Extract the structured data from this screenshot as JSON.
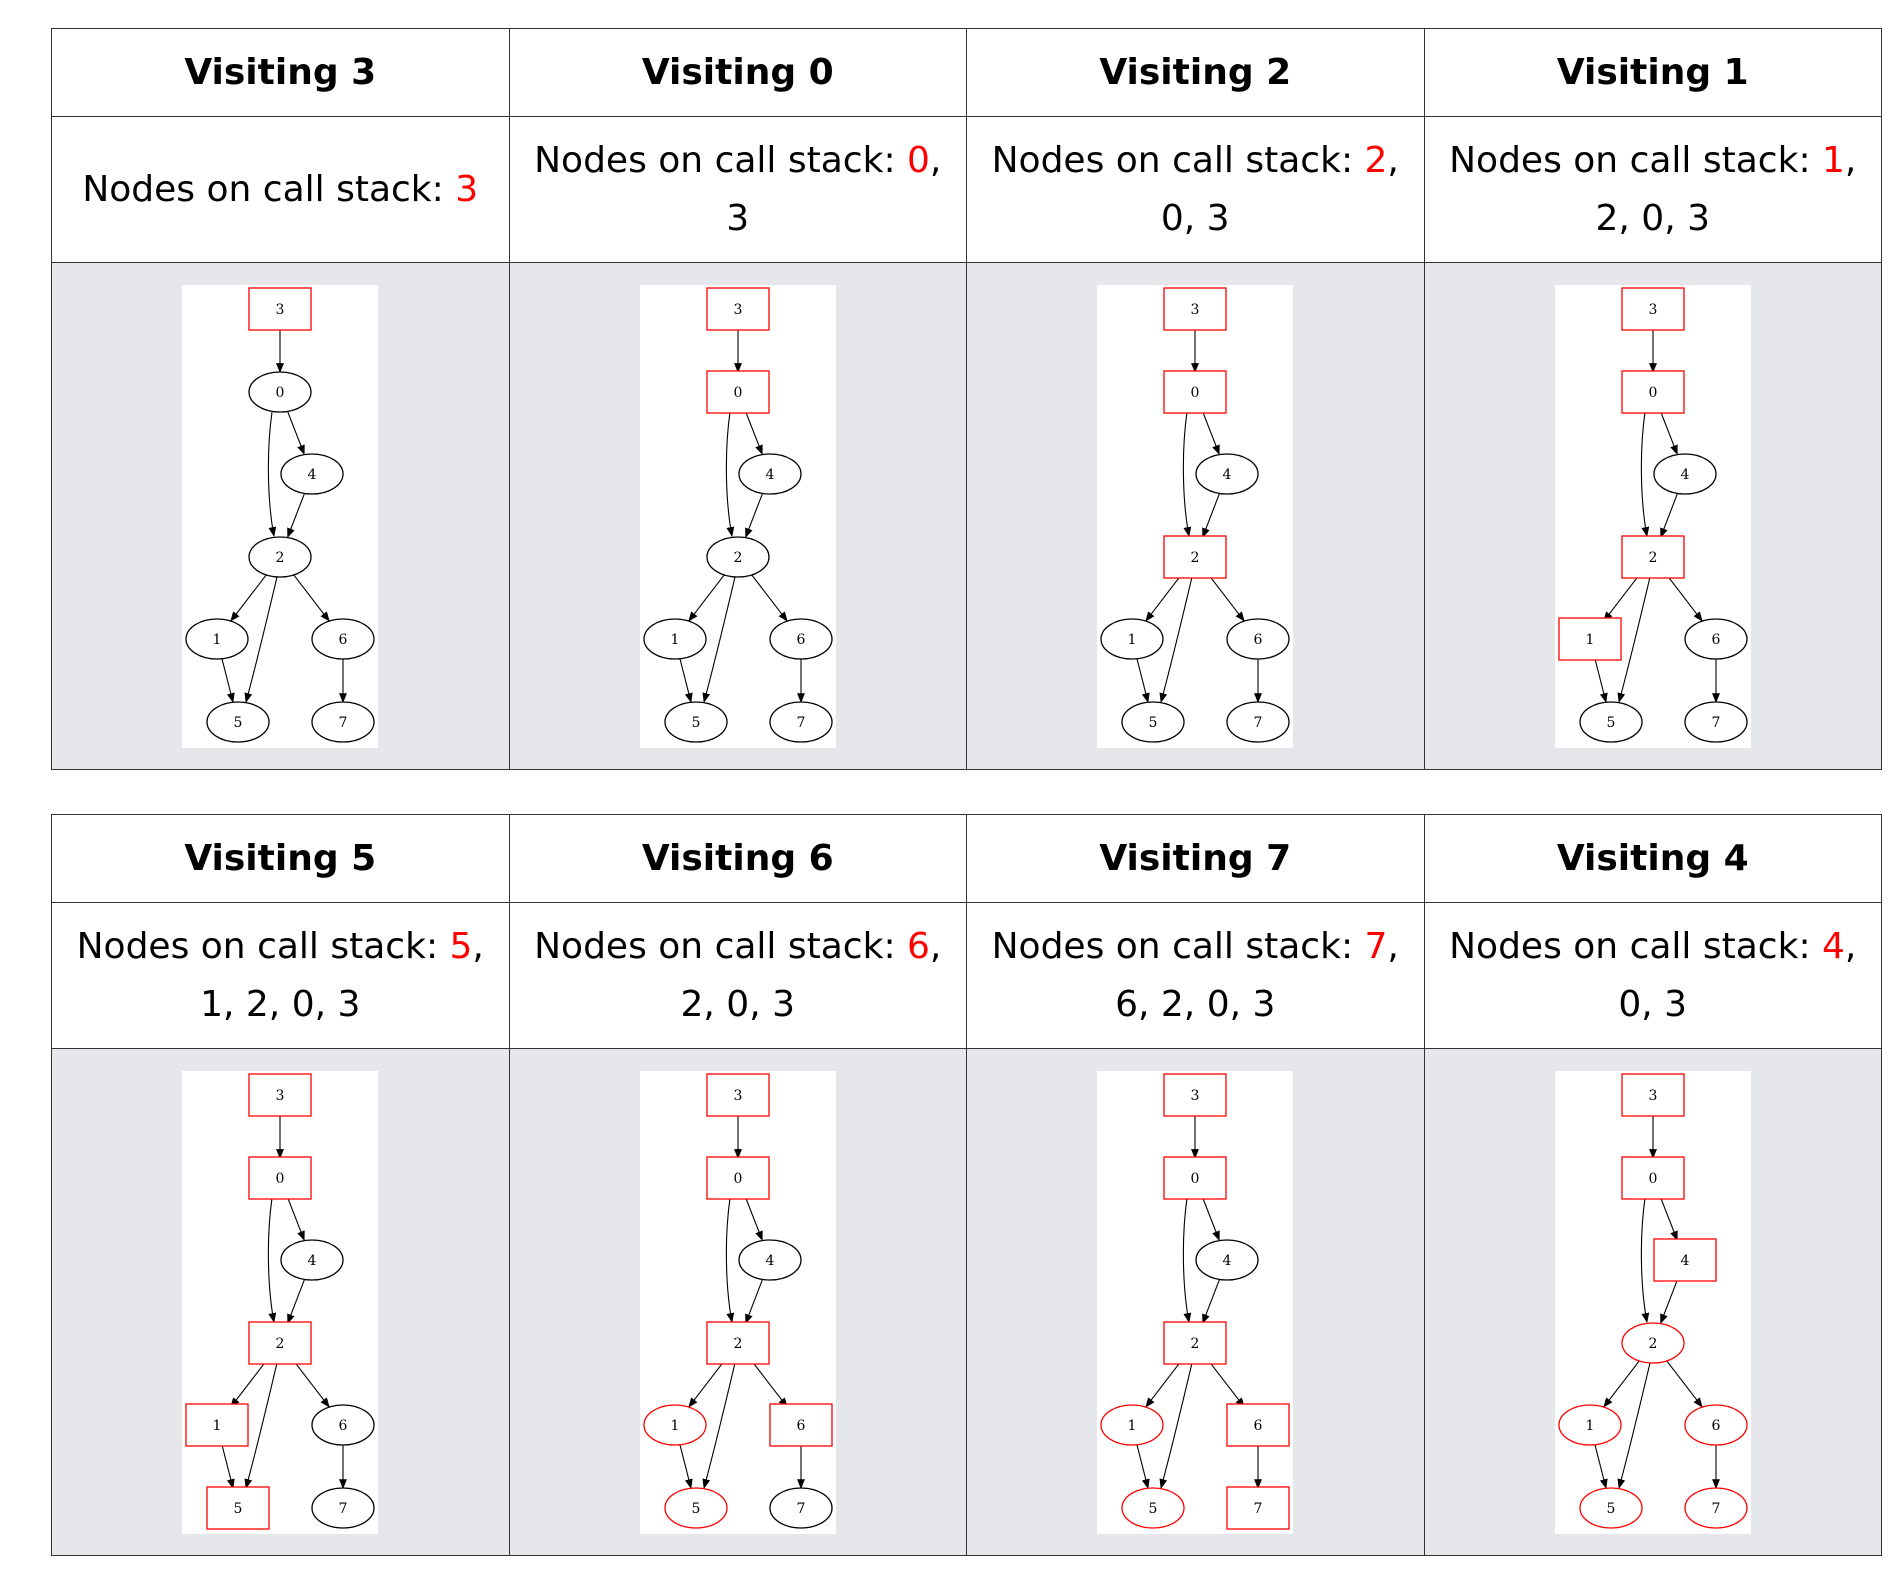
{
  "stack_prefix": "Nodes on call stack: ",
  "colors": {
    "active": "#ff0000",
    "default": "#000000",
    "graph_background": "#e5e7eb"
  },
  "graph": {
    "nodes": [
      "3",
      "0",
      "4",
      "2",
      "1",
      "6",
      "5",
      "7"
    ],
    "edges": [
      [
        "3",
        "0"
      ],
      [
        "0",
        "4"
      ],
      [
        "0",
        "2"
      ],
      [
        "4",
        "2"
      ],
      [
        "2",
        "1"
      ],
      [
        "2",
        "5"
      ],
      [
        "2",
        "6"
      ],
      [
        "1",
        "5"
      ],
      [
        "6",
        "7"
      ]
    ]
  },
  "steps": [
    {
      "title": "Visiting 3",
      "current": "3",
      "rest": "",
      "node_states": {
        "3": "box",
        "0": "plain",
        "4": "plain",
        "2": "plain",
        "1": "plain",
        "6": "plain",
        "5": "plain",
        "7": "plain"
      }
    },
    {
      "title": "Visiting 0",
      "current": "0",
      "rest": ", 3",
      "node_states": {
        "3": "box",
        "0": "box",
        "4": "plain",
        "2": "plain",
        "1": "plain",
        "6": "plain",
        "5": "plain",
        "7": "plain"
      }
    },
    {
      "title": "Visiting 2",
      "current": "2",
      "rest": ", 0, 3",
      "node_states": {
        "3": "box",
        "0": "box",
        "4": "plain",
        "2": "box",
        "1": "plain",
        "6": "plain",
        "5": "plain",
        "7": "plain"
      }
    },
    {
      "title": "Visiting 1",
      "current": "1",
      "rest": ", 2, 0, 3",
      "node_states": {
        "3": "box",
        "0": "box",
        "4": "plain",
        "2": "box",
        "1": "box",
        "6": "plain",
        "5": "plain",
        "7": "plain"
      }
    },
    {
      "title": "Visiting 5",
      "current": "5",
      "rest": ", 1, 2, 0, 3",
      "node_states": {
        "3": "box",
        "0": "box",
        "4": "plain",
        "2": "box",
        "1": "box",
        "6": "plain",
        "5": "box",
        "7": "plain"
      }
    },
    {
      "title": "Visiting 6",
      "current": "6",
      "rest": ", 2, 0, 3",
      "node_states": {
        "3": "box",
        "0": "box",
        "4": "plain",
        "2": "box",
        "1": "done",
        "6": "box",
        "5": "done",
        "7": "plain"
      }
    },
    {
      "title": "Visiting 7",
      "current": "7",
      "rest": ", 6, 2, 0, 3",
      "node_states": {
        "3": "box",
        "0": "box",
        "4": "plain",
        "2": "box",
        "1": "done",
        "6": "box",
        "5": "done",
        "7": "box"
      }
    },
    {
      "title": "Visiting 4",
      "current": "4",
      "rest": ", 0, 3",
      "node_states": {
        "3": "box",
        "0": "box",
        "4": "box",
        "2": "done",
        "1": "done",
        "6": "done",
        "5": "done",
        "7": "done"
      }
    }
  ]
}
